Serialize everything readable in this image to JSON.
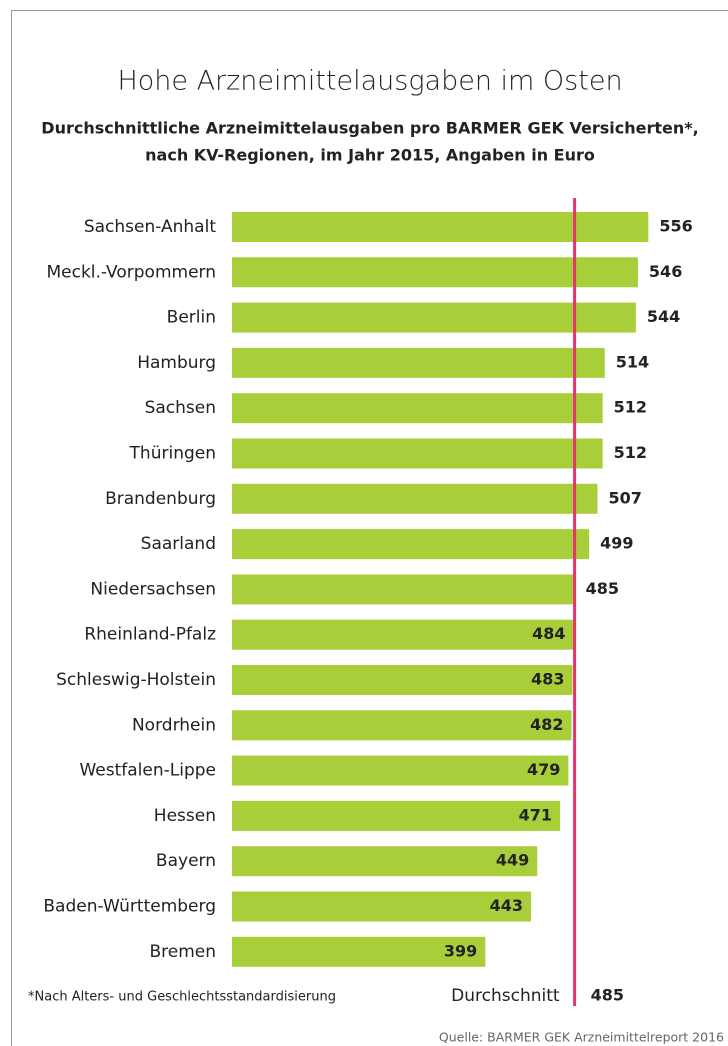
{
  "chart_data": {
    "type": "bar",
    "orientation": "horizontal",
    "title": "Hohe Arzneimittelausgaben im Osten",
    "subtitle": [
      "Durchschnittliche Arzneimittelausgaben pro BARMER GEK Versicherten*,",
      "nach KV-Regionen, im Jahr 2015, Angaben in Euro"
    ],
    "categories": [
      "Sachsen-Anhalt",
      "Meckl.-Vorpommern",
      "Berlin",
      "Hamburg",
      "Sachsen",
      "Thüringen",
      "Brandenburg",
      "Saarland",
      "Niedersachsen",
      "Rheinland-Pfalz",
      "Schleswig-Holstein",
      "Nordrhein",
      "Westfalen-Lippe",
      "Hessen",
      "Bayern",
      "Baden-Württemberg",
      "Bremen"
    ],
    "values": [
      556,
      546,
      544,
      514,
      512,
      512,
      507,
      499,
      485,
      484,
      483,
      482,
      479,
      471,
      449,
      443,
      399
    ],
    "color": "#a8cf3a",
    "xlim": [
      155,
      600
    ],
    "reference_line": {
      "label": "Durchschnitt",
      "value": 485,
      "color": "#e5336e"
    },
    "footnote": "*Nach Alters- und Geschlechtsstandardisierung",
    "source": "Quelle: BARMER GEK Arzneimittelreport 2016"
  }
}
